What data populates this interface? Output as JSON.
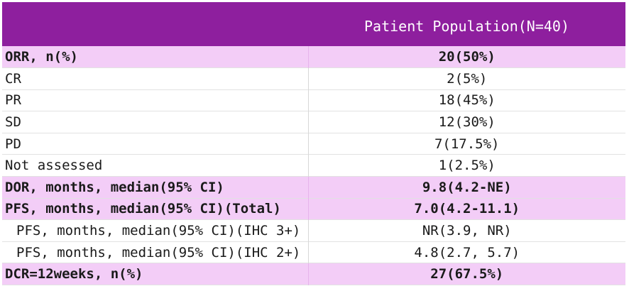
{
  "header": {
    "col1": "",
    "col2": "Patient Population(N=40)"
  },
  "rows": [
    {
      "label": "ORR, n(%)",
      "value": "20(50%)",
      "highlight": true
    },
    {
      "label": "CR",
      "value": "2(5%)"
    },
    {
      "label": "PR",
      "value": "18(45%)"
    },
    {
      "label": "SD",
      "value": "12(30%)"
    },
    {
      "label": "PD",
      "value": "7(17.5%)"
    },
    {
      "label": "Not assessed",
      "value": "1(2.5%)"
    },
    {
      "label": "DOR, months, median(95% CI)",
      "value": "9.8(4.2-NE)",
      "highlight": true
    },
    {
      "label": "PFS, months, median(95% CI)(Total)",
      "value": "7.0(4.2-11.1)",
      "highlight": true
    },
    {
      "label": "PFS, months, median(95% CI)(IHC 3+)",
      "value": "NR(3.9, NR)",
      "indent": true
    },
    {
      "label": "PFS, months, median(95% CI)(IHC 2+)",
      "value": "4.8(2.7, 5.7)",
      "indent": true
    },
    {
      "label": "DCR=12weeks, n(%)",
      "value": "27(67.5%)",
      "highlight": true
    }
  ],
  "colors": {
    "header_bg": "#8e1f9e",
    "highlight_bg": "#f3cdf7"
  }
}
